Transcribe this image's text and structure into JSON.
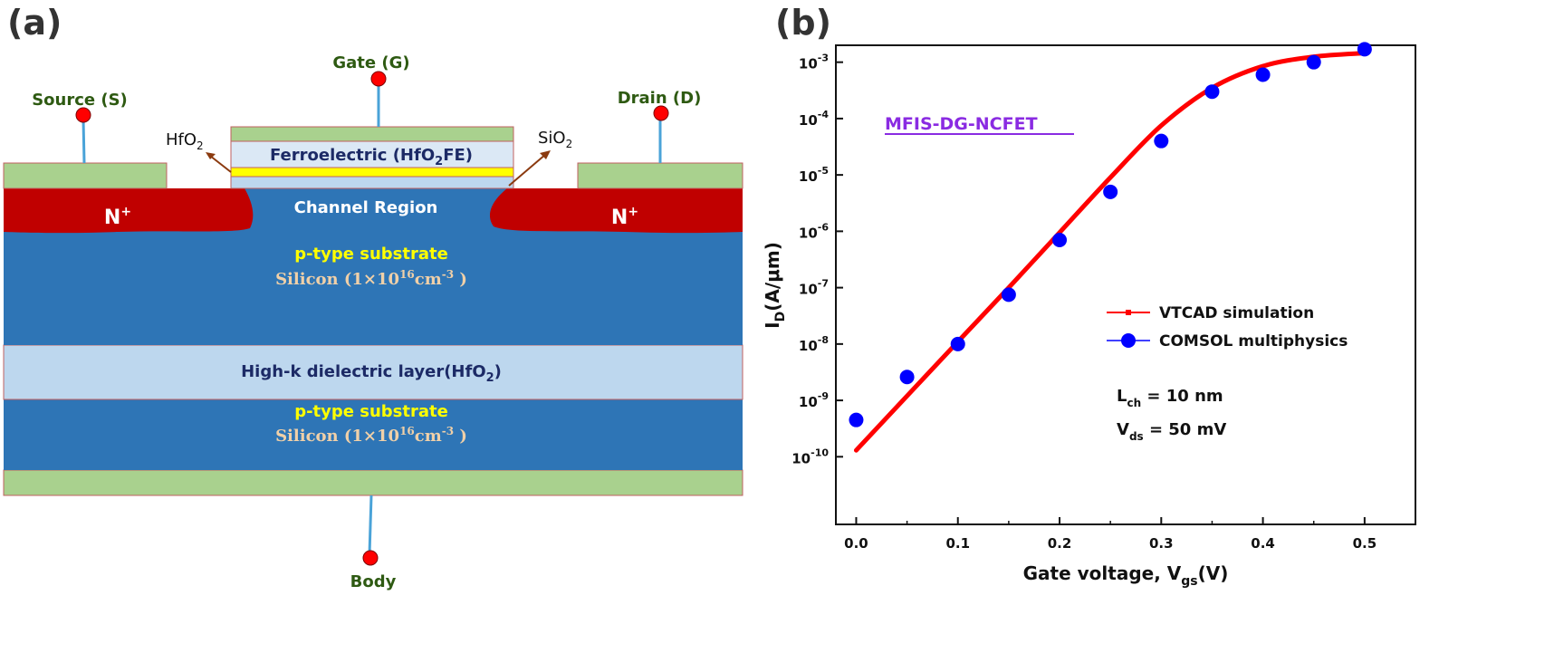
{
  "panel_a": {
    "label": "(a)",
    "gate": "Gate (G)",
    "source": "Source (S)",
    "drain": "Drain (D)",
    "body": "Body",
    "hfo2": {
      "base": "HfO",
      "sub": "2"
    },
    "sio2": {
      "base": "SiO",
      "sub": "2"
    },
    "ferro": {
      "pre": "Ferroelectric (HfO",
      "sub": "2",
      "post": "FE)"
    },
    "channel": "Channel Region",
    "nplus": {
      "base": "N",
      "sup": "+"
    },
    "ptype": "p-type substrate",
    "silicon": {
      "pre": "Silicon  (1×10",
      "sup": "16",
      "mid": "cm",
      "sup2": "-3",
      "post": " )"
    },
    "highk": {
      "pre": "High-k dielectric layer(HfO",
      "sub": "2",
      "post": ")"
    },
    "colors": {
      "contact": "#a9d18e",
      "substrate": "#2e75b6",
      "nplus": "#c00000",
      "dielectric": "#bdd7ee",
      "oxide_yellow": "#ffff00",
      "pin": "#ff0000"
    }
  },
  "panel_b": {
    "label": "(b)",
    "chart_data": {
      "type": "line",
      "title": "MFIS-DG-NCFET",
      "xlabel": {
        "base": "Gate voltage, V",
        "sub": "gs",
        "post": "(V)"
      },
      "ylabel": {
        "base": "I",
        "sub": "D",
        "post": "(A/μm)"
      },
      "x_ticks": [
        "0.0",
        "0.1",
        "0.2",
        "0.3",
        "0.4",
        "0.5"
      ],
      "y_ticks": [
        {
          "mant": "10",
          "exp": "-10"
        },
        {
          "mant": "10",
          "exp": "-9"
        },
        {
          "mant": "10",
          "exp": "-8"
        },
        {
          "mant": "10",
          "exp": "-7"
        },
        {
          "mant": "10",
          "exp": "-6"
        },
        {
          "mant": "10",
          "exp": "-5"
        },
        {
          "mant": "10",
          "exp": "-4"
        },
        {
          "mant": "10",
          "exp": "-3"
        }
      ],
      "xlim": [
        -0.02,
        0.55
      ],
      "ylim_log10": [
        -11.2,
        -2.7
      ],
      "y_scale": "log",
      "legend_position": "center-right",
      "series": [
        {
          "name": "VTCAD simulation",
          "style": "line",
          "color": "#ff0000",
          "x": [
            0.0,
            0.05,
            0.1,
            0.15,
            0.2,
            0.25,
            0.3,
            0.35,
            0.4,
            0.45,
            0.5
          ],
          "y": [
            1.3e-10,
            1.2e-09,
            1.1e-08,
            1e-07,
            9.5e-07,
            9e-06,
            7.5e-05,
            0.00035,
            0.00085,
            0.00125,
            0.00145
          ]
        },
        {
          "name": "COMSOL multiphysics",
          "style": "marker",
          "color": "#0000ff",
          "x": [
            0.0,
            0.05,
            0.1,
            0.15,
            0.2,
            0.25,
            0.3,
            0.35,
            0.4,
            0.45,
            0.5
          ],
          "y": [
            4.5e-10,
            2.6e-09,
            1e-08,
            7.5e-08,
            7e-07,
            5e-06,
            4e-05,
            0.0003,
            0.0006,
            0.001,
            0.0017
          ]
        }
      ],
      "annotations": [
        {
          "base": "L",
          "sub": "ch",
          "post": " = 10 nm"
        },
        {
          "base": "V",
          "sub": "ds",
          "post": " = 50 mV"
        }
      ]
    }
  }
}
